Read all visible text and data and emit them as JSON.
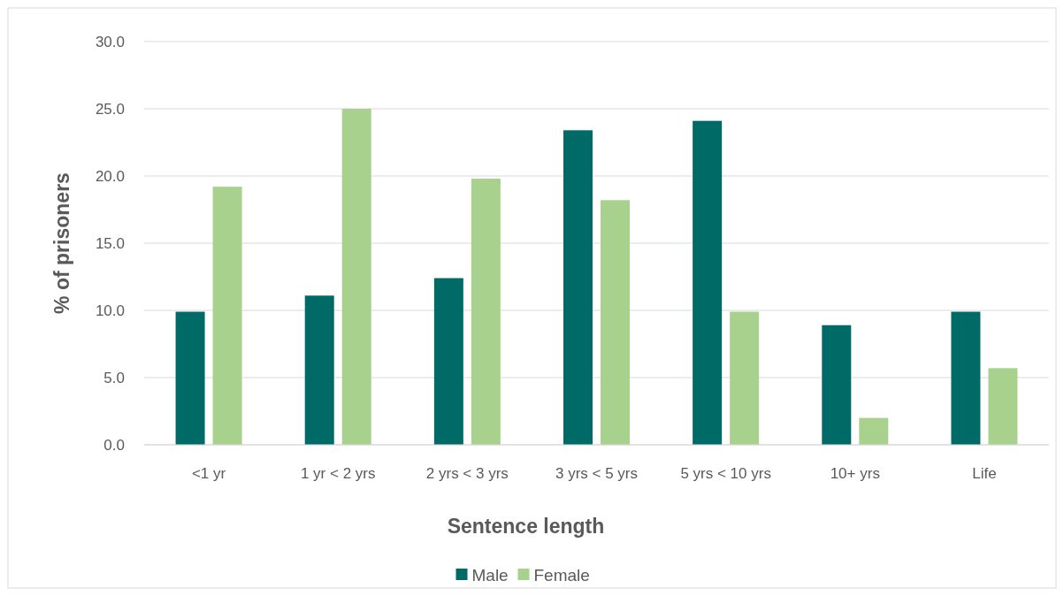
{
  "chart_data": {
    "type": "bar",
    "xlabel": "Sentence length",
    "ylabel": "% of prisoners",
    "categories": [
      "<1 yr",
      "1 yr < 2 yrs",
      "2 yrs < 3 yrs",
      "3 yrs < 5 yrs",
      "5 yrs < 10 yrs",
      "10+ yrs",
      "Life"
    ],
    "series": [
      {
        "name": "Male",
        "color": "#006a66",
        "values": [
          9.9,
          11.1,
          12.4,
          23.4,
          24.1,
          8.9,
          9.9
        ]
      },
      {
        "name": "Female",
        "color": "#a9d18e",
        "values": [
          19.2,
          25.0,
          19.8,
          18.2,
          9.9,
          2.0,
          5.7
        ]
      }
    ],
    "ylim": [
      0,
      30
    ],
    "yticks": [
      {
        "value": 0,
        "label": "0.0"
      },
      {
        "value": 5,
        "label": "5.0"
      },
      {
        "value": 10,
        "label": "10.0"
      },
      {
        "value": 15,
        "label": "15.0"
      },
      {
        "value": 20,
        "label": "20.0"
      },
      {
        "value": 25,
        "label": "25.0"
      },
      {
        "value": 30,
        "label": "30.0"
      }
    ],
    "grid": "y",
    "legend": "bottom"
  }
}
